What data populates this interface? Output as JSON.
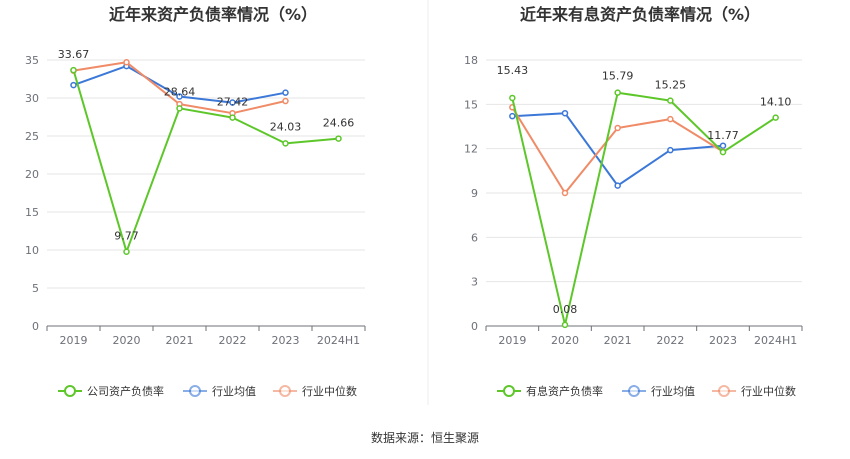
{
  "source": "数据来源：恒生聚源",
  "colors": {
    "company": "#5dc72a",
    "avg": "#3c78d8",
    "median": "#f08b67",
    "grid": "#e6e6e6",
    "axis": "#6e7079"
  },
  "chart_data": [
    {
      "type": "line",
      "title": "近年来资产负债率情况（%）",
      "categories": [
        "2019",
        "2020",
        "2021",
        "2022",
        "2023",
        "2024H1"
      ],
      "ylim": [
        0,
        35
      ],
      "yticks": [
        "0",
        "5",
        "10",
        "15",
        "20",
        "25",
        "30",
        "35"
      ],
      "ytick_values": [
        0,
        5,
        10,
        15,
        20,
        25,
        30,
        35
      ],
      "series": [
        {
          "name": "公司资产负债率",
          "color_key": "company",
          "values": [
            33.67,
            9.77,
            28.64,
            27.42,
            24.03,
            24.66
          ],
          "labels": [
            "33.67",
            "9.77",
            "28.64",
            "27.42",
            "24.03",
            "24.66"
          ]
        },
        {
          "name": "行业均值",
          "color_key": "avg",
          "values": [
            31.7,
            34.2,
            30.2,
            29.4,
            30.7,
            null
          ]
        },
        {
          "name": "行业中位数",
          "color_key": "median",
          "values": [
            33.6,
            34.7,
            29.2,
            28.0,
            29.6,
            null
          ]
        }
      ]
    },
    {
      "type": "line",
      "title": "近年来有息资产负债率情况（%）",
      "categories": [
        "2019",
        "2020",
        "2021",
        "2022",
        "2023",
        "2024H1"
      ],
      "ylim": [
        0,
        18
      ],
      "yticks": [
        "0",
        "3",
        "6",
        "9",
        "12",
        "15",
        "18"
      ],
      "ytick_values": [
        0,
        3,
        6,
        9,
        12,
        15,
        18
      ],
      "series": [
        {
          "name": "有息资产负债率",
          "color_key": "company",
          "values": [
            15.43,
            0.08,
            15.79,
            15.25,
            11.77,
            14.1
          ],
          "labels": [
            "15.43",
            "0.08",
            "15.79",
            "15.25",
            "11.77",
            "14.10"
          ]
        },
        {
          "name": "行业均值",
          "color_key": "avg",
          "values": [
            14.2,
            14.4,
            9.5,
            11.9,
            12.2,
            null
          ]
        },
        {
          "name": "行业中位数",
          "color_key": "median",
          "values": [
            14.8,
            9.0,
            13.4,
            14.0,
            11.8,
            null
          ]
        }
      ]
    }
  ]
}
